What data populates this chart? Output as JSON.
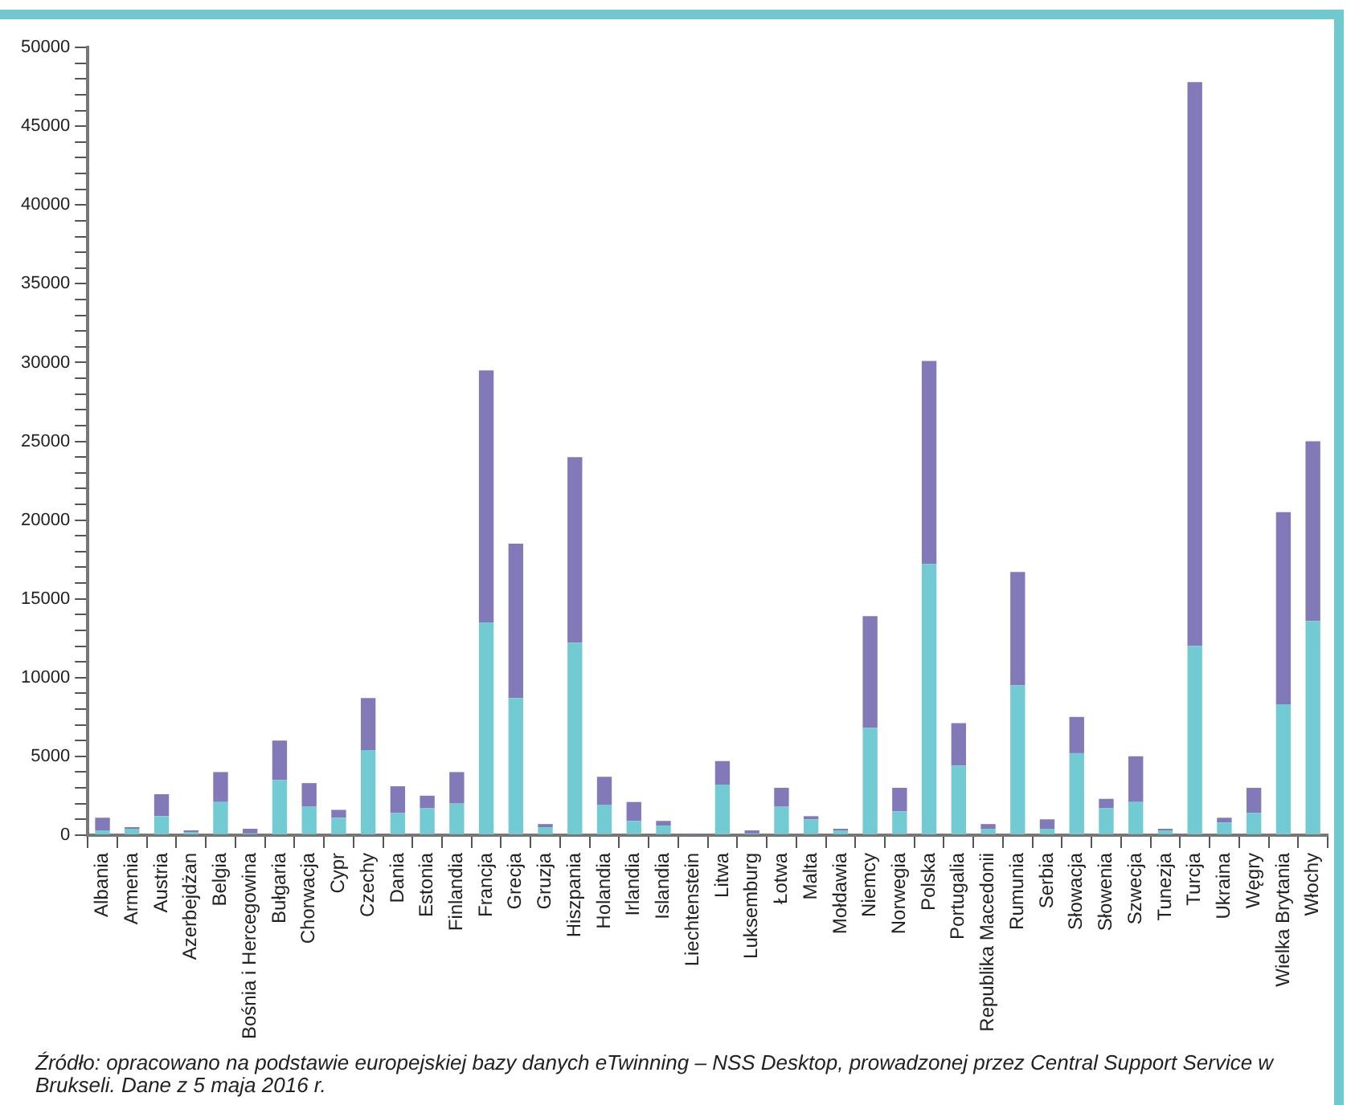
{
  "chart_data": {
    "type": "bar",
    "stacked": true,
    "grid": false,
    "legend": false,
    "categories": [
      "Albania",
      "Armenia",
      "Austria",
      "Azerbejdżan",
      "Belgia",
      "Bośnia i Hercegowina",
      "Bułgaria",
      "Chorwacja",
      "Cypr",
      "Czechy",
      "Dania",
      "Estonia",
      "Finlandia",
      "Francja",
      "Grecja",
      "Gruzja",
      "Hiszpania",
      "Holandia",
      "Irlandia",
      "Islandia",
      "Liechtenstein",
      "Litwa",
      "Luksemburg",
      "Łotwa",
      "Malta",
      "Mołdawia",
      "Niemcy",
      "Norwegia",
      "Polska",
      "Portugalia",
      "Republika Macedonii",
      "Rumunia",
      "Serbia",
      "Słowacja",
      "Słowenia",
      "Szwecja",
      "Tunezja",
      "Turcja",
      "Ukraina",
      "Węgry",
      "Wielka Brytania",
      "Włochy"
    ],
    "series": [
      {
        "color": "#72cbd2",
        "values": [
          300,
          400,
          1200,
          200,
          2100,
          100,
          3500,
          1800,
          1100,
          5400,
          1400,
          1700,
          2000,
          13500,
          8700,
          500,
          12200,
          1900,
          900,
          600,
          null,
          3200,
          100,
          1800,
          1000,
          300,
          6800,
          1500,
          17200,
          4400,
          400,
          9500,
          400,
          5200,
          1700,
          2100,
          300,
          12000,
          800,
          1400,
          8300,
          13600
        ]
      },
      {
        "color": "#8279b8",
        "values": [
          800,
          100,
          1400,
          100,
          1900,
          300,
          2500,
          1500,
          500,
          3300,
          1700,
          800,
          2000,
          16000,
          9800,
          200,
          11800,
          1800,
          1200,
          300,
          100,
          1500,
          200,
          1200,
          200,
          100,
          7100,
          1500,
          12900,
          2700,
          300,
          7200,
          600,
          2300,
          600,
          2900,
          100,
          35800,
          300,
          1600,
          12200,
          11400
        ]
      }
    ],
    "ylim": [
      0,
      50000
    ],
    "yticks": [
      0,
      {
        "value": 1000,
        "label": null
      },
      {
        "value": 2000,
        "label": null
      },
      {
        "value": 3000,
        "label": null
      },
      {
        "value": 4000,
        "label": null
      },
      5000,
      {
        "value": 6000,
        "label": null
      },
      {
        "value": 7000,
        "label": null
      },
      {
        "value": 8000,
        "label": null
      },
      {
        "value": 9000,
        "label": null
      },
      10000,
      {
        "value": 11000,
        "label": null
      },
      {
        "value": 12000,
        "label": null
      },
      {
        "value": 13000,
        "label": null
      },
      {
        "value": 14000,
        "label": null
      },
      15000,
      {
        "value": 16000,
        "label": null
      },
      {
        "value": 17000,
        "label": null
      },
      {
        "value": 18000,
        "label": null
      },
      {
        "value": 19000,
        "label": null
      },
      20000,
      {
        "value": 21000,
        "label": null
      },
      {
        "value": 22000,
        "label": null
      },
      {
        "value": 23000,
        "label": null
      },
      {
        "value": 24000,
        "label": null
      },
      25000,
      {
        "value": 26000,
        "label": null
      },
      {
        "value": 27000,
        "label": null
      },
      {
        "value": 28000,
        "label": null
      },
      {
        "value": 29000,
        "label": null
      },
      30000,
      {
        "value": 31000,
        "label": null
      },
      {
        "value": 32000,
        "label": null
      },
      {
        "value": 33000,
        "label": null
      },
      {
        "value": 34000,
        "label": null
      },
      35000,
      {
        "value": 36000,
        "label": null
      },
      {
        "value": 37000,
        "label": null
      },
      {
        "value": 38000,
        "label": null
      },
      {
        "value": 39000,
        "label": null
      },
      40000,
      {
        "value": 41000,
        "label": null
      },
      {
        "value": 42000,
        "label": null
      },
      {
        "value": 43000,
        "label": null
      },
      {
        "value": 44000,
        "label": null
      },
      45000,
      {
        "value": 46000,
        "label": null
      },
      {
        "value": 47000,
        "label": null
      },
      {
        "value": 48000,
        "label": null
      },
      {
        "value": 49000,
        "label": null
      },
      50000
    ],
    "annotations": [
      "Źródło: opracowano na podstawie europejskiej bazy danych eTwinning – NSS Desktop, prowadzonej przez Central Support Service w Brukseli. Dane z 5 maja 2016 r."
    ]
  }
}
